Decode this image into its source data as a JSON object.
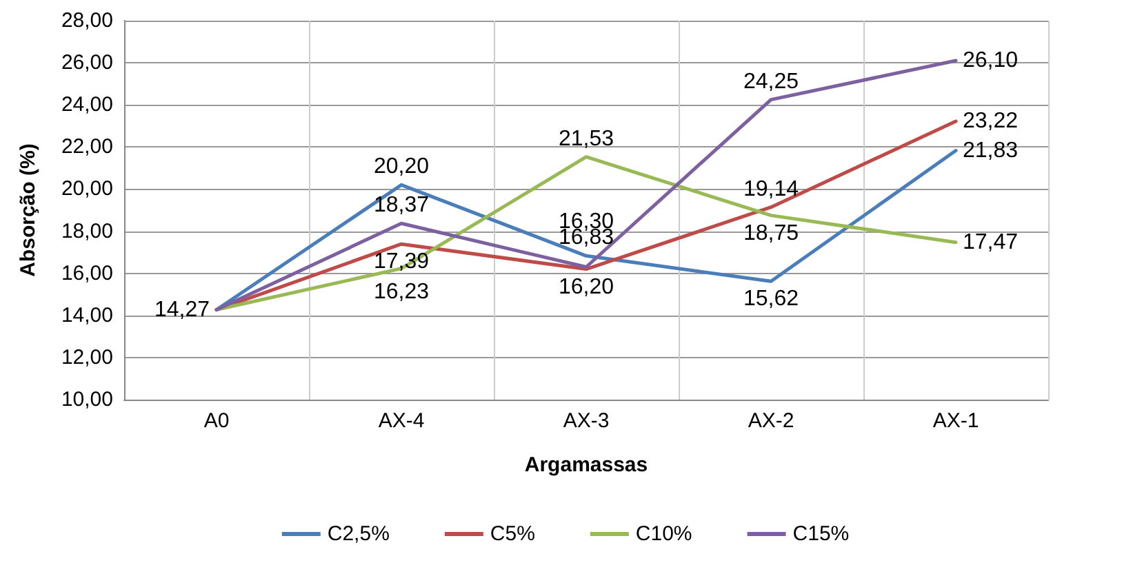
{
  "chart_data": {
    "type": "line",
    "xlabel": "Argamassas",
    "ylabel": "Absorção (%)",
    "categories": [
      "A0",
      "AX-4",
      "AX-3",
      "AX-2",
      "AX-1"
    ],
    "ylim": [
      10,
      28
    ],
    "yticks": [
      {
        "value": 10,
        "label": "10,00"
      },
      {
        "value": 12,
        "label": "12,00"
      },
      {
        "value": 14,
        "label": "14,00"
      },
      {
        "value": 16,
        "label": "16,00"
      },
      {
        "value": 18,
        "label": "18,00"
      },
      {
        "value": 20,
        "label": "20,00"
      },
      {
        "value": 22,
        "label": "22,00"
      },
      {
        "value": 24,
        "label": "24,00"
      },
      {
        "value": 26,
        "label": "26,00"
      },
      {
        "value": 28,
        "label": "28,00"
      }
    ],
    "grid": "y",
    "legend": "bottom",
    "marker": "none",
    "line_style": "solid",
    "series": [
      {
        "name": "C2,5%",
        "color": "#4a7ebb",
        "values": [
          14.27,
          20.2,
          16.83,
          15.62,
          21.83
        ],
        "value_labels": [
          "14,27",
          "20,20",
          "16,83",
          "15,62",
          "21,83"
        ]
      },
      {
        "name": "C5%",
        "color": "#be4b48",
        "values": [
          14.27,
          17.39,
          16.2,
          19.14,
          23.22
        ],
        "value_labels": [
          null,
          "17,39",
          "16,20",
          "19,14",
          "23,22"
        ]
      },
      {
        "name": "C10%",
        "color": "#98b954",
        "values": [
          14.27,
          16.23,
          21.53,
          18.75,
          17.47
        ],
        "value_labels": [
          null,
          "16,23",
          "21,53",
          "18,75",
          "17,47"
        ]
      },
      {
        "name": "C15%",
        "color": "#7d60a0",
        "values": [
          14.27,
          18.37,
          16.3,
          24.25,
          26.1
        ],
        "value_labels": [
          null,
          "18,37",
          "16,30",
          "24,25",
          "26,10"
        ]
      }
    ]
  }
}
